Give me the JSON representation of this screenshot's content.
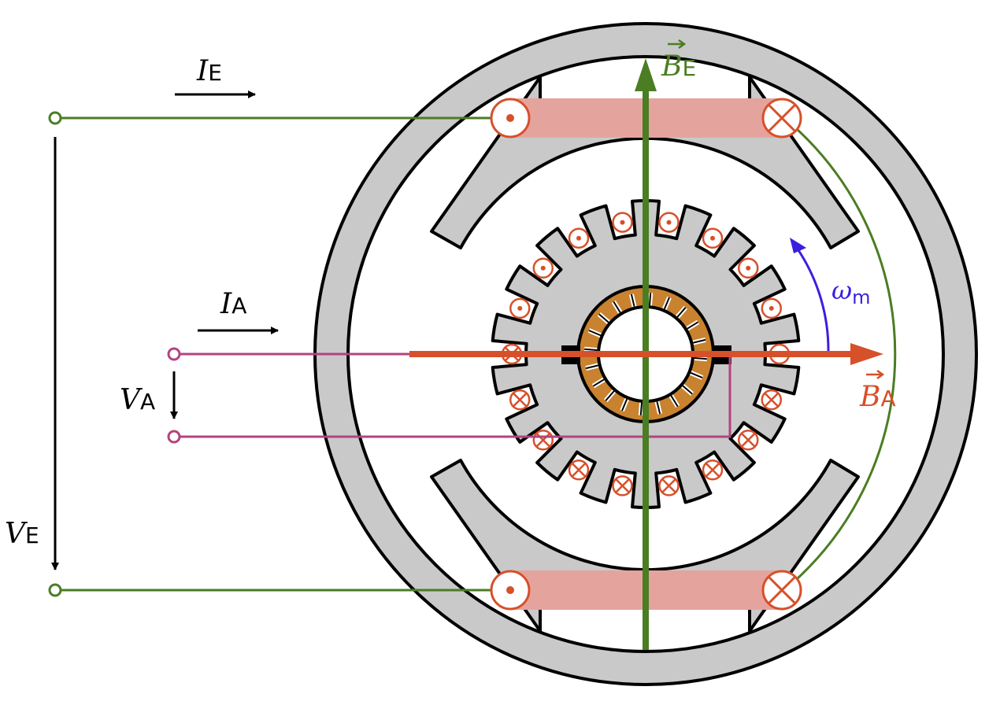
{
  "labels": {
    "ie": {
      "main": "I",
      "sub": "E"
    },
    "ia": {
      "main": "I",
      "sub": "A"
    },
    "ve": {
      "main": "V",
      "sub": "E"
    },
    "va": {
      "main": "V",
      "sub": "A"
    },
    "be": {
      "main": "B",
      "sub": "E"
    },
    "ba": {
      "main": "B",
      "sub": "A"
    },
    "omega": {
      "main": "ω",
      "sub": "m"
    }
  },
  "colors": {
    "field": "#4b7d23",
    "armature": "#d6502a",
    "armature_terminal": "#b3437f",
    "rotation": "#3a1fe0",
    "iron": "#c9c9c9",
    "coil": "#e5a39e",
    "commutator": "#c9822f",
    "outline": "#000000"
  },
  "icons": [
    "current-out-icon",
    "current-in-icon",
    "terminal-icon"
  ]
}
